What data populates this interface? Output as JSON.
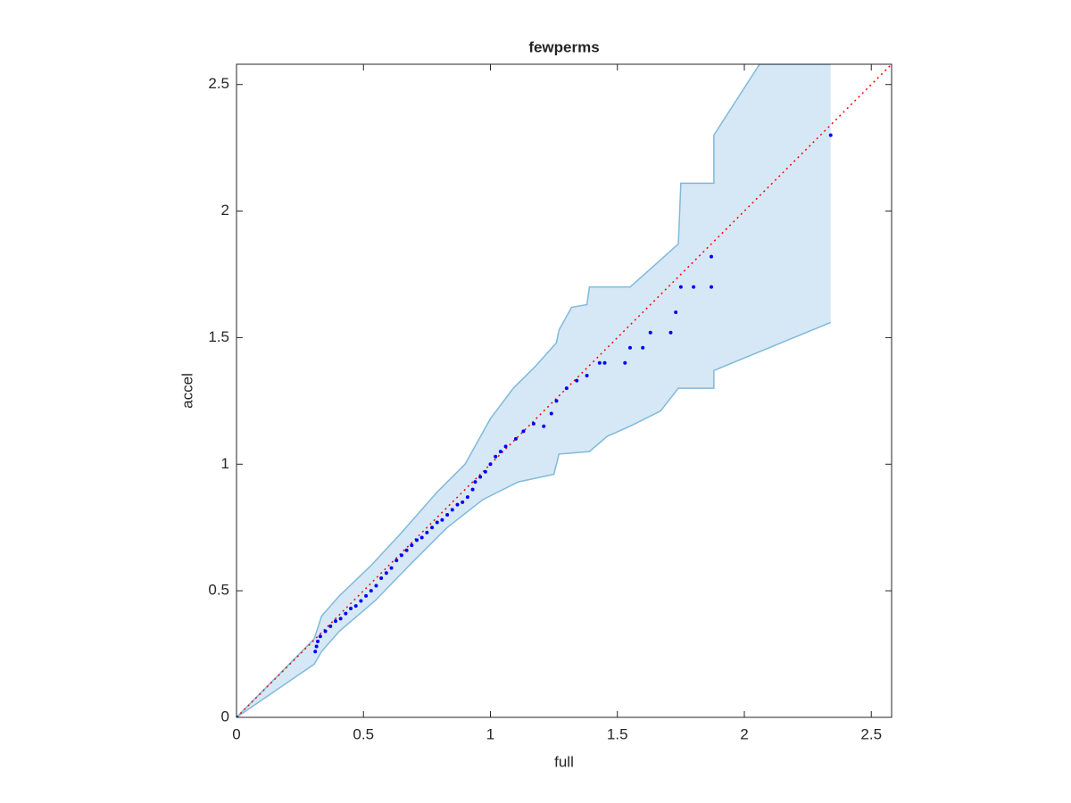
{
  "chart_data": {
    "type": "scatter",
    "title": "fewperms",
    "x_label": "full",
    "y_label": "accel",
    "xlim": [
      0,
      2.58
    ],
    "ylim": [
      0,
      2.58
    ],
    "xticks": [
      0,
      0.5,
      1,
      1.5,
      2,
      2.5
    ],
    "yticks": [
      0,
      0.5,
      1,
      1.5,
      2,
      2.5
    ],
    "grid": false,
    "series": [
      {
        "color": "#0000ff",
        "x": [
          0,
          0.31,
          0.315,
          0.32,
          0.33,
          0.35,
          0.37,
          0.39,
          0.41,
          0.43,
          0.45,
          0.47,
          0.49,
          0.51,
          0.53,
          0.55,
          0.57,
          0.59,
          0.61,
          0.63,
          0.65,
          0.67,
          0.69,
          0.71,
          0.73,
          0.75,
          0.77,
          0.79,
          0.81,
          0.83,
          0.85,
          0.87,
          0.89,
          0.91,
          0.93,
          0.94,
          0.96,
          0.98,
          1.0,
          1.02,
          1.04,
          1.06,
          1.1,
          1.13,
          1.17,
          1.21,
          1.24,
          1.26,
          1.3,
          1.34,
          1.38,
          1.43,
          1.45,
          1.53,
          1.55,
          1.6,
          1.63,
          1.71,
          1.73,
          1.75,
          1.8,
          1.87,
          1.87,
          2.34
        ],
        "values": [
          0,
          0.26,
          0.28,
          0.3,
          0.32,
          0.34,
          0.36,
          0.38,
          0.39,
          0.41,
          0.43,
          0.44,
          0.46,
          0.48,
          0.5,
          0.52,
          0.55,
          0.57,
          0.59,
          0.62,
          0.64,
          0.66,
          0.68,
          0.7,
          0.71,
          0.73,
          0.75,
          0.77,
          0.78,
          0.8,
          0.82,
          0.84,
          0.85,
          0.87,
          0.9,
          0.93,
          0.95,
          0.97,
          1.0,
          1.03,
          1.05,
          1.07,
          1.1,
          1.13,
          1.16,
          1.15,
          1.2,
          1.25,
          1.3,
          1.33,
          1.35,
          1.4,
          1.4,
          1.4,
          1.46,
          1.46,
          1.52,
          1.52,
          1.6,
          1.7,
          1.7,
          1.7,
          1.82,
          2.3
        ]
      }
    ],
    "band": {
      "color": "#d6e8f5",
      "edge_color": "#80b9dc",
      "upper": {
        "x": [
          0,
          0.306,
          0.335,
          0.405,
          0.53,
          0.65,
          0.79,
          0.9,
          1.0,
          1.09,
          1.18,
          1.26,
          1.27,
          1.32,
          1.38,
          1.39,
          1.55,
          1.64,
          1.74,
          1.75,
          1.88,
          1.88,
          2.06,
          2.34
        ],
        "values": [
          0,
          0.31,
          0.4,
          0.48,
          0.6,
          0.73,
          0.89,
          1.0,
          1.18,
          1.3,
          1.39,
          1.48,
          1.53,
          1.62,
          1.63,
          1.7,
          1.7,
          1.78,
          1.87,
          2.11,
          2.11,
          2.3,
          2.58,
          2.58
        ]
      },
      "lower": {
        "x": [
          0,
          0.306,
          0.335,
          0.405,
          0.545,
          0.69,
          0.83,
          0.97,
          1.11,
          1.25,
          1.27,
          1.39,
          1.46,
          1.55,
          1.67,
          1.74,
          1.88,
          1.88,
          2.34
        ],
        "values": [
          0,
          0.21,
          0.26,
          0.34,
          0.46,
          0.61,
          0.75,
          0.86,
          0.93,
          0.96,
          1.04,
          1.05,
          1.11,
          1.15,
          1.21,
          1.3,
          1.3,
          1.37,
          1.56
        ]
      }
    },
    "reference_line": {
      "color": "#ff0000",
      "x": [
        0,
        2.58
      ],
      "values": [
        0,
        2.58
      ]
    }
  }
}
